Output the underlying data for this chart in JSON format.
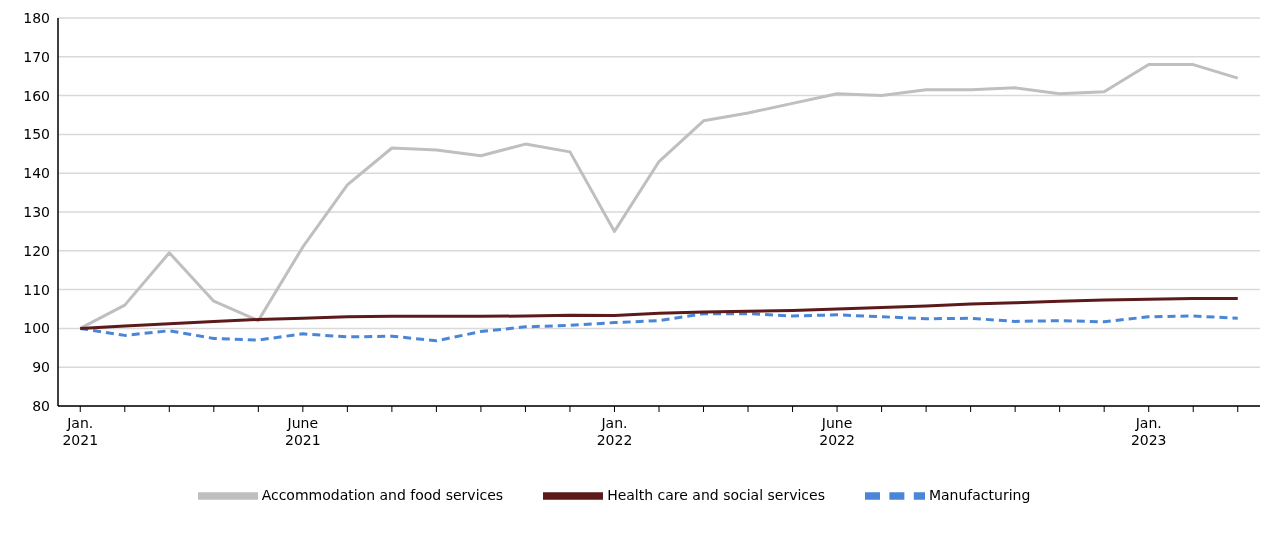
{
  "chart_data": {
    "type": "line",
    "categories": [
      "Jan.\n2021",
      null,
      null,
      null,
      null,
      "June\n2021",
      null,
      null,
      null,
      null,
      null,
      null,
      "Jan.\n2022",
      null,
      null,
      null,
      null,
      "June\n2022",
      null,
      null,
      null,
      null,
      null,
      null,
      "Jan.\n2023",
      null,
      null
    ],
    "series": [
      {
        "name": "Accommodation and food services",
        "color": "#bfbfbf",
        "line_style": "solid",
        "values": [
          100,
          106,
          119.5,
          107,
          102,
          121,
          137,
          146.5,
          146,
          144.5,
          147.5,
          145.5,
          125,
          143,
          153.5,
          155.5,
          158,
          160.5,
          160,
          161.5,
          161.5,
          162,
          160.5,
          161,
          168,
          168,
          164.5
        ]
      },
      {
        "name": "Manufacturing",
        "color": "#4a86d8",
        "line_style": "dashed",
        "values": [
          100,
          98.2,
          99.4,
          97.4,
          97,
          98.6,
          97.8,
          98,
          96.8,
          99.2,
          100.4,
          100.8,
          101.5,
          102,
          103.8,
          103.8,
          103.2,
          103.5,
          103,
          102.5,
          102.6,
          101.8,
          102,
          101.7,
          103,
          103.2,
          102.6
        ]
      },
      {
        "name": "Health care and social services",
        "color": "#5c1a1b",
        "line_style": "solid",
        "values": [
          100,
          100.6,
          101.2,
          101.8,
          102.3,
          102.6,
          103,
          103.1,
          103.1,
          103.1,
          103.2,
          103.4,
          103.3,
          103.9,
          104.2,
          104.4,
          104.6,
          105,
          105.4,
          105.8,
          106.3,
          106.6,
          107,
          107.3,
          107.5,
          107.7,
          107.7
        ]
      }
    ],
    "ylim": [
      80,
      180
    ],
    "yticks": [
      80,
      90,
      100,
      110,
      120,
      130,
      140,
      150,
      160,
      170,
      180
    ],
    "grid": "y",
    "legend": "bottom",
    "marker": "none"
  }
}
